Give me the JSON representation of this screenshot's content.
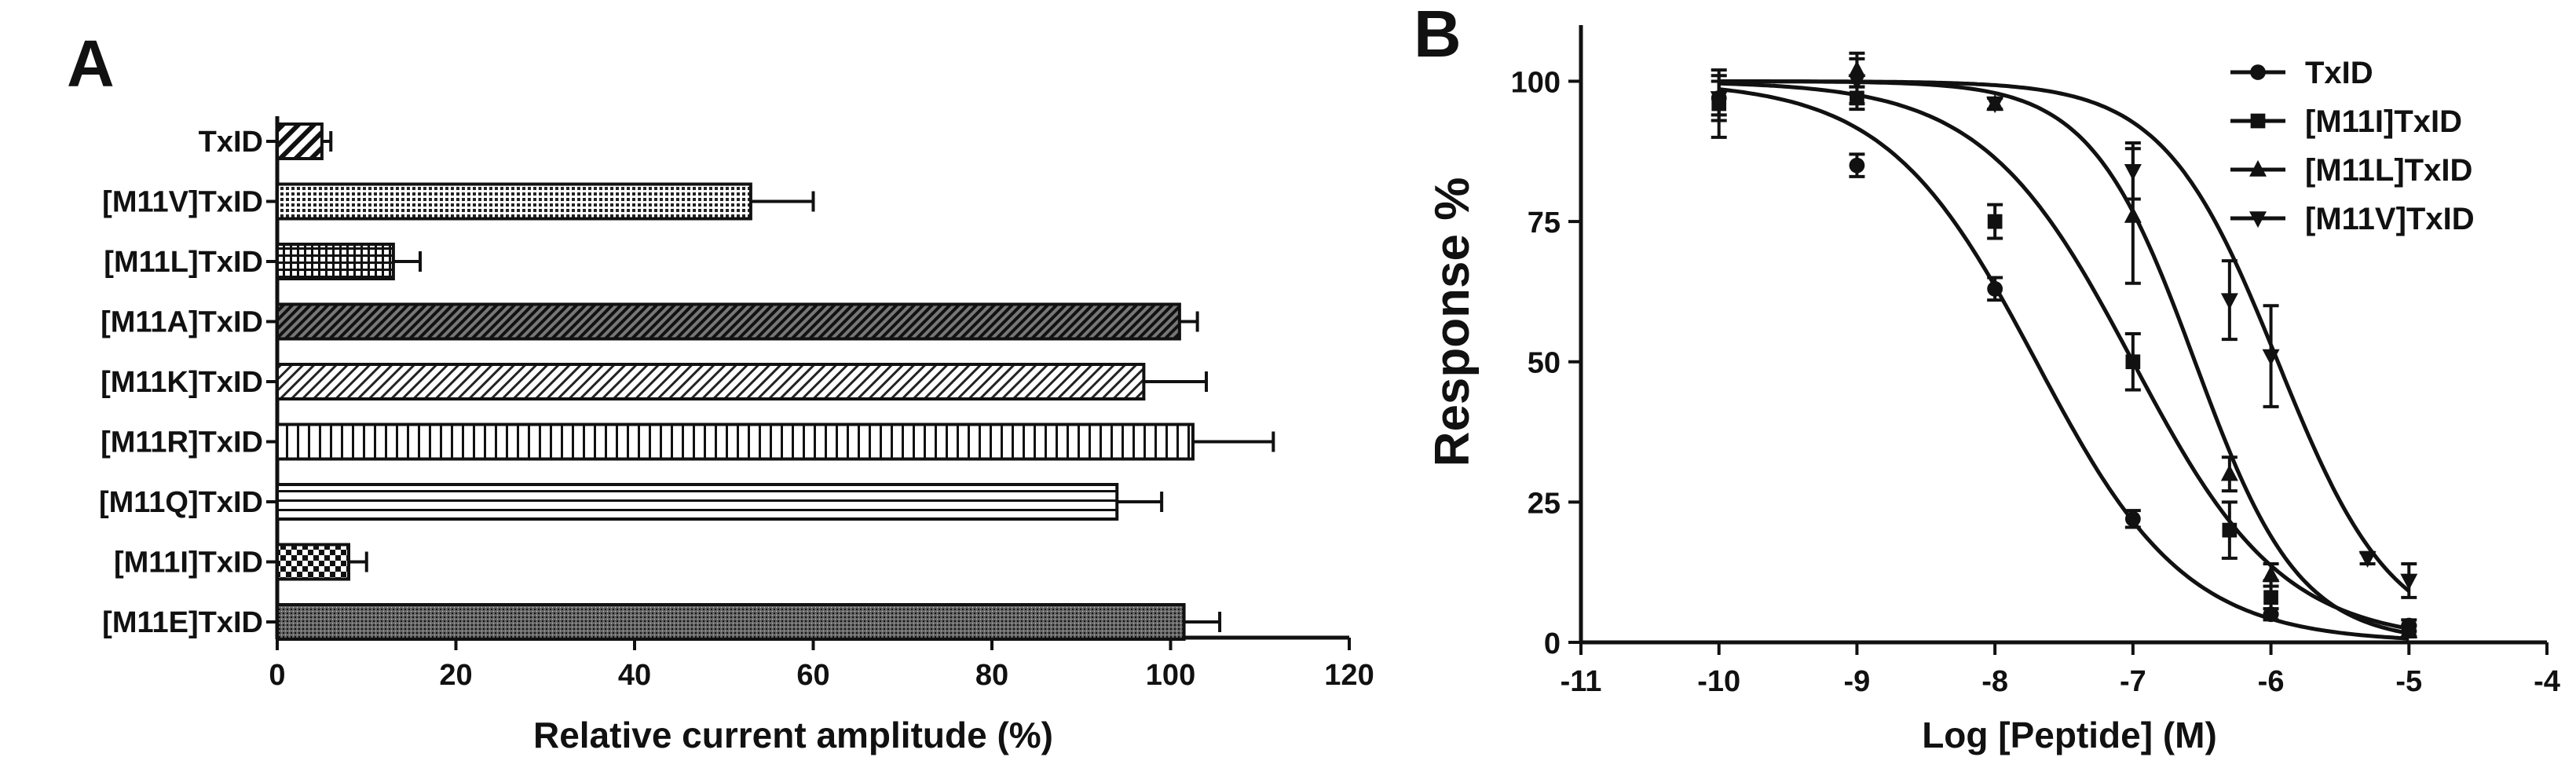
{
  "chart_data": [
    {
      "panel": "A",
      "type": "bar",
      "orientation": "horizontal",
      "categories": [
        "TxID",
        "[M11V]TxID",
        "[M11L]TxID",
        "[M11A]TxID",
        "[M11K]TxID",
        "[M11R]TxID",
        "[M11Q]TxID",
        "[M11I]TxID",
        "[M11E]TxID"
      ],
      "values": [
        5,
        53,
        13,
        101,
        97,
        102.5,
        94,
        8,
        101.5
      ],
      "errors": [
        1,
        7,
        3,
        2,
        7,
        9,
        5,
        2,
        4
      ],
      "patterns": [
        "diag-wide",
        "dots",
        "grid",
        "diag-dark",
        "diag-thin",
        "vertical",
        "horizontal",
        "checker",
        "fine-dots"
      ],
      "xlabel": "Relative current amplitude (%)",
      "ylabel": "",
      "xlim": [
        0,
        120
      ],
      "xticks": [
        0,
        20,
        40,
        60,
        80,
        100,
        120
      ]
    },
    {
      "panel": "B",
      "type": "scatter",
      "fit": "sigmoidal dose-response",
      "xlabel": "Log [Peptide] (M)",
      "ylabel": "Response %",
      "xlim": [
        -11,
        -4
      ],
      "ylim": [
        0,
        110
      ],
      "xticks": [
        -11,
        -10,
        -9,
        -8,
        -7,
        -6,
        -5,
        -4
      ],
      "yticks": [
        0,
        25,
        50,
        75,
        100
      ],
      "legend_position": "top-right",
      "series": [
        {
          "name": "TxID",
          "marker": "circle",
          "logIC50": -7.7,
          "hill": 0.8,
          "x": [
            -10,
            -9,
            -8,
            -7,
            -6,
            -5
          ],
          "y": [
            97,
            85,
            63,
            22,
            5,
            3
          ],
          "err": [
            4,
            2,
            2,
            1.5,
            1,
            1
          ]
        },
        {
          "name": "[M11I]TxID",
          "marker": "square",
          "logIC50": -7.0,
          "hill": 0.8,
          "x": [
            -10,
            -9,
            -8,
            -7,
            -6.3,
            -6,
            -5
          ],
          "y": [
            96,
            97,
            75,
            50,
            20,
            8,
            2
          ],
          "err": [
            6,
            2,
            3,
            5,
            5,
            3,
            1
          ]
        },
        {
          "name": "[M11L]TxID",
          "marker": "triangle-up",
          "logIC50": -6.55,
          "hill": 1.15,
          "x": [
            -9,
            -8,
            -7,
            -6.3,
            -6,
            -5
          ],
          "y": [
            102,
            96,
            76,
            30,
            12,
            2
          ],
          "err": [
            3,
            1,
            12,
            3,
            2,
            1
          ]
        },
        {
          "name": "[M11V]TxID",
          "marker": "triangle-down",
          "logIC50": -5.95,
          "hill": 1.05,
          "x": [
            -10,
            -9,
            -8,
            -7,
            -6.3,
            -6,
            -5.3,
            -5
          ],
          "y": [
            97,
            100,
            96,
            84,
            61,
            51,
            15,
            11
          ],
          "err": [
            3,
            4,
            1,
            5,
            7,
            9,
            1,
            3
          ]
        }
      ]
    }
  ]
}
